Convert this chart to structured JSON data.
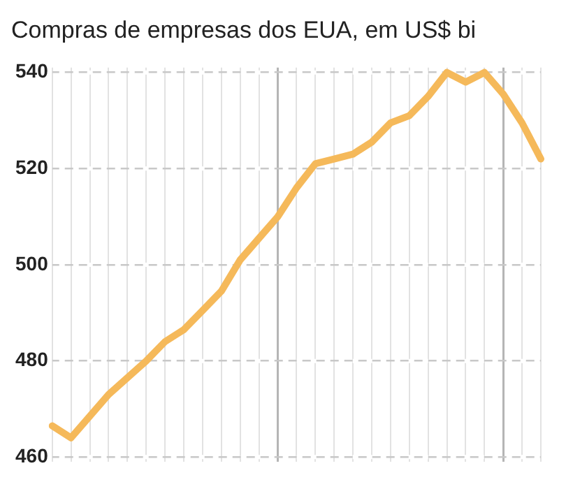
{
  "chart_data": {
    "type": "line",
    "title": "Compras de empresas dos EUA, em US$ bi",
    "categories": [
      null,
      null,
      null,
      null,
      null,
      null,
      null,
      null,
      null,
      null,
      null,
      null,
      null,
      null,
      null,
      null,
      null,
      null,
      null,
      null,
      null,
      null,
      null,
      null,
      null,
      null,
      null
    ],
    "series": [
      {
        "color": "#f5b95a",
        "values": [
          466.5,
          464,
          468.5,
          473,
          476.5,
          480,
          484,
          486.5,
          490.5,
          494.5,
          501,
          505.5,
          510,
          516,
          521,
          522,
          523,
          525.5,
          529.5,
          531,
          535,
          540,
          538,
          540,
          535.5,
          529.5,
          522
        ]
      }
    ],
    "ylim": [
      459,
      541
    ],
    "yticks": [
      460,
      480,
      500,
      520,
      540
    ],
    "grid": true,
    "legend": false,
    "marker": "none",
    "line_style": "solid",
    "tick_labels": "y"
  }
}
